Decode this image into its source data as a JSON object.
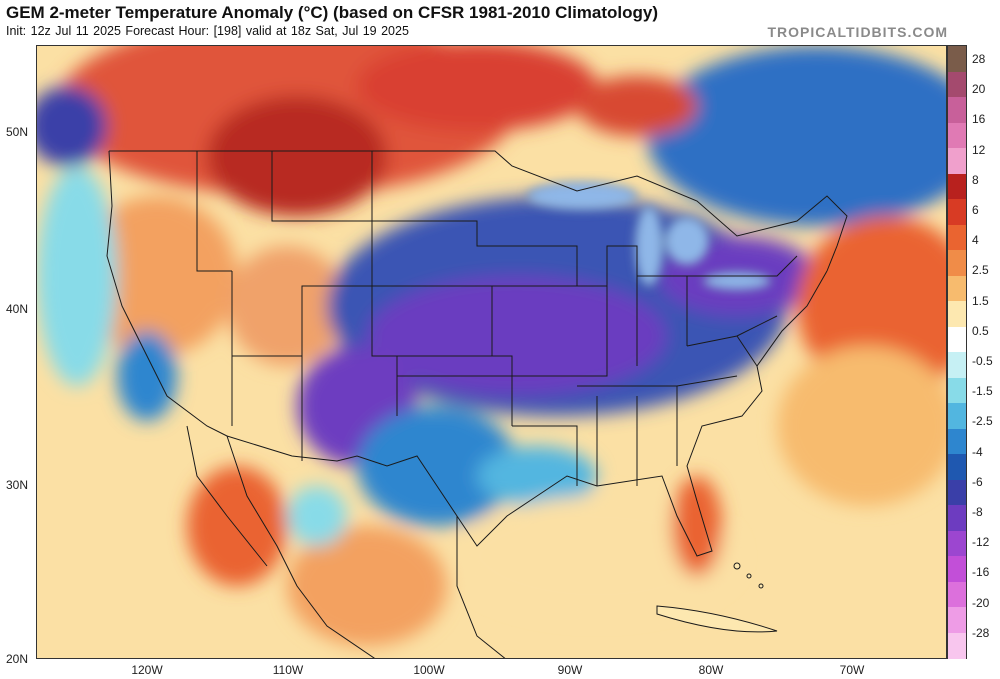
{
  "header": {
    "title": "GEM 2-meter Temperature Anomaly (°C) (based on CFSR 1981-2010 Climatology)",
    "subtitle": "Init: 12z Jul 11 2025   Forecast Hour: [198]   valid at 18z Sat, Jul 19 2025",
    "brand": "TROPICALTIDBITS.COM"
  },
  "map": {
    "lat_labels": [
      "50N",
      "40N",
      "30N",
      "20N"
    ],
    "lon_labels": [
      "120W",
      "110W",
      "100W",
      "90W",
      "80W",
      "70W"
    ]
  },
  "colorbar": {
    "labels": [
      "28",
      "20",
      "16",
      "12",
      "8",
      "6",
      "4",
      "2.5",
      "1.5",
      "0.5",
      "-0.5",
      "-1.5",
      "-2.5",
      "-4",
      "-6",
      "-8",
      "-12",
      "-16",
      "-20",
      "-28"
    ],
    "colors": [
      "#7a5c4a",
      "#a44a6e",
      "#c8609a",
      "#e07ab4",
      "#f0a0cc",
      "#b8211e",
      "#d83b24",
      "#ea6430",
      "#f08c48",
      "#f7bb6e",
      "#fde8b0",
      "#ffffff",
      "#c6f0f4",
      "#88dbe8",
      "#52b6e0",
      "#2e86cf",
      "#1f58b0",
      "#3a3fa8",
      "#6d3cc0",
      "#9c46d0",
      "#c24fd8",
      "#dc70dc",
      "#ee9ce6",
      "#f8c6ee"
    ]
  }
}
